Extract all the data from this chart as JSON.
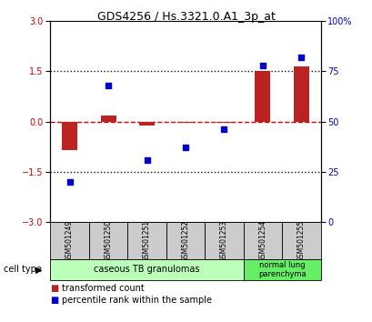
{
  "title": "GDS4256 / Hs.3321.0.A1_3p_at",
  "samples": [
    "GSM501249",
    "GSM501250",
    "GSM501251",
    "GSM501252",
    "GSM501253",
    "GSM501254",
    "GSM501255"
  ],
  "transformed_count": [
    -0.85,
    0.18,
    -0.12,
    -0.05,
    -0.05,
    1.5,
    1.65
  ],
  "percentile_rank": [
    20,
    68,
    31,
    37,
    46,
    78,
    82
  ],
  "ylim_left": [
    -3,
    3
  ],
  "ylim_right": [
    0,
    100
  ],
  "yticks_left": [
    -3,
    -1.5,
    0,
    1.5,
    3
  ],
  "yticks_right": [
    0,
    25,
    50,
    75,
    100
  ],
  "hlines": [
    1.5,
    -1.5
  ],
  "cell_types": [
    {
      "label": "caseous TB granulomas",
      "span": [
        0,
        5
      ],
      "color": "#bbffbb"
    },
    {
      "label": "normal lung\nparenchyma",
      "span": [
        5,
        7
      ],
      "color": "#66ee66"
    }
  ],
  "bar_color": "#bb2222",
  "marker_color": "#0000cc",
  "bar_width": 0.4,
  "zero_line_color": "#dd0000",
  "dotted_line_color": "#111111",
  "background_color": "#ffffff",
  "sample_box_color": "#cccccc",
  "legend_items": [
    {
      "label": "transformed count",
      "color": "#bb2222"
    },
    {
      "label": "percentile rank within the sample",
      "color": "#0000cc"
    }
  ]
}
